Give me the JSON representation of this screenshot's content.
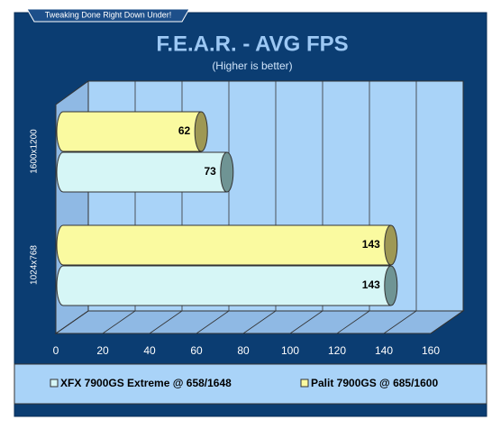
{
  "banner": "Tweaking Done Right Down Under!",
  "chart_data": {
    "type": "bar3d",
    "title": "F.E.A.R. - AVG FPS",
    "subtitle": "(Higher is better)",
    "categories": [
      "1600x1200",
      "1024x768"
    ],
    "series": [
      {
        "name": "XFX 7900GS Extreme @ 658/1648",
        "color": "#d6f6f6",
        "values": [
          73,
          143
        ]
      },
      {
        "name": "Palit 7900GS @ 685/1600",
        "color": "#fafaa0",
        "values": [
          62,
          143
        ]
      }
    ],
    "xlim": [
      0,
      160
    ],
    "xticks": [
      0,
      20,
      40,
      60,
      80,
      100,
      120,
      140,
      160
    ],
    "grid": true
  }
}
